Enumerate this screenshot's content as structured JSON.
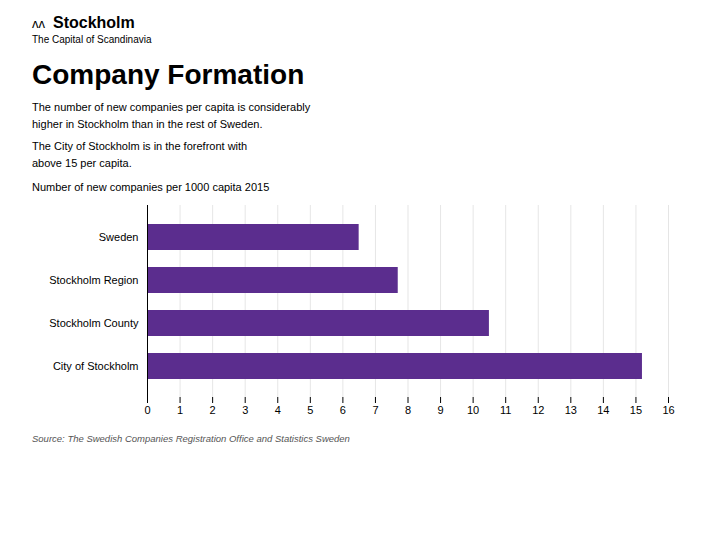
{
  "chart_data": {
    "type": "bar",
    "orientation": "horizontal",
    "title": "Company Formation",
    "subtitle": "Number of new companies per  1000 capita 2015",
    "categories": [
      "Sweden",
      "Stockholm Region",
      "Stockholm County",
      "City of Stockholm"
    ],
    "values": [
      6.5,
      7.7,
      10.5,
      15.2
    ],
    "color": "#5B2D8E",
    "xlim": [
      0,
      16
    ],
    "xticks": [
      0,
      1,
      2,
      3,
      4,
      5,
      6,
      7,
      8,
      9,
      10,
      11,
      12,
      13,
      14,
      15,
      16
    ],
    "grid": true,
    "annotations": [
      "ʌʌ",
      "Stockholm",
      "The Capital of Scandinavia",
      "The number of new companies per capita is considerably",
      "higher in Stockholm than in the rest of Sweden.",
      "The City of Stockholm is in the forefront with",
      "above 15 per capita.",
      "Source: The Swedish Companies Registration Office and Statistics Sweden"
    ]
  }
}
